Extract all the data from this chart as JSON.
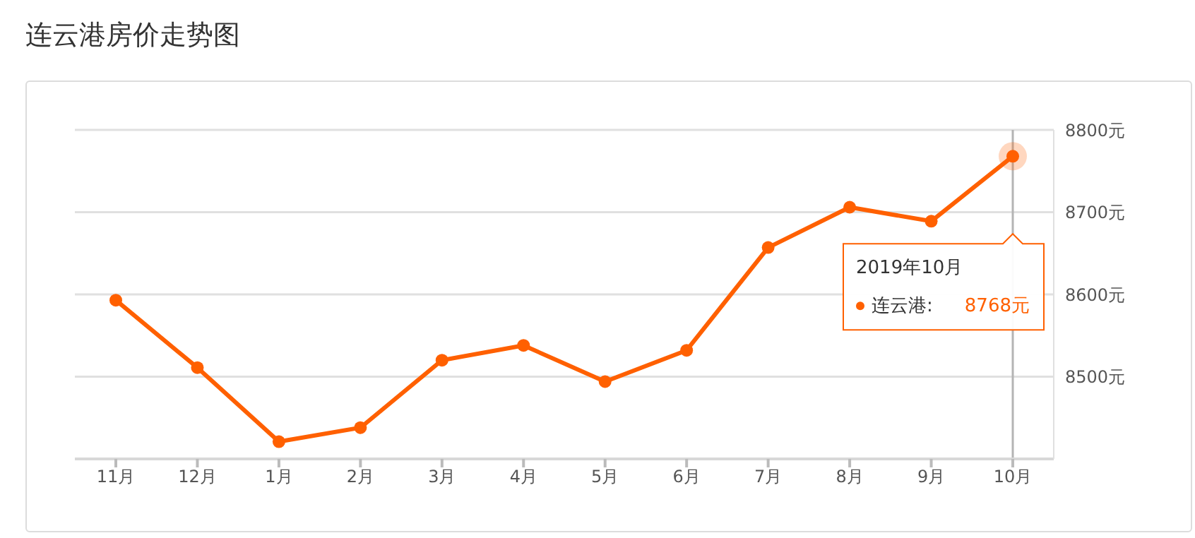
{
  "chart_data": {
    "type": "line",
    "title": "连云港房价走势图",
    "categories": [
      "11月",
      "12月",
      "1月",
      "2月",
      "3月",
      "4月",
      "5月",
      "6月",
      "7月",
      "8月",
      "9月",
      "10月"
    ],
    "series": [
      {
        "name": "连云港:",
        "color": "#ff6000",
        "values": [
          8593,
          8511,
          8421,
          8438,
          8520,
          8538,
          8494,
          8532,
          8657,
          8706,
          8689,
          8768
        ]
      }
    ],
    "ylim": [
      8400,
      8800
    ],
    "yticks": [
      {
        "value": 8500,
        "label": "8500元"
      },
      {
        "value": 8600,
        "label": "8600元"
      },
      {
        "value": 8700,
        "label": "8700元"
      },
      {
        "value": 8800,
        "label": "8800元"
      }
    ],
    "annotations": [
      "2019年10月",
      "8768元"
    ],
    "ref_lines": [
      {
        "axis": "x",
        "value": "10月",
        "color": "#b4b4b4"
      }
    ],
    "grid": "y",
    "marker": "circle",
    "line_style": "solid"
  }
}
